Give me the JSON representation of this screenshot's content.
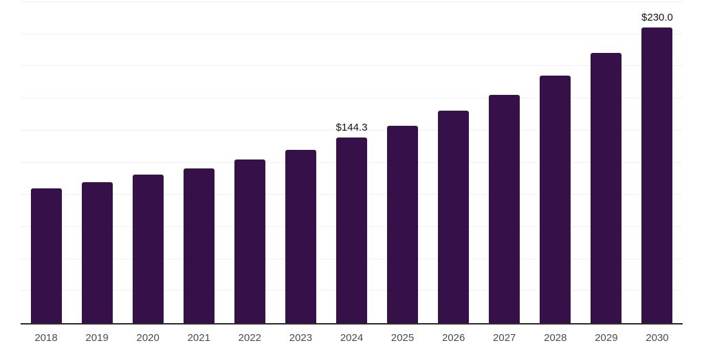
{
  "chart_data": {
    "type": "bar",
    "title": "",
    "xlabel": "",
    "ylabel": "",
    "categories": [
      "2018",
      "2019",
      "2020",
      "2021",
      "2022",
      "2023",
      "2024",
      "2025",
      "2026",
      "2027",
      "2028",
      "2029",
      "2030"
    ],
    "values": [
      104.8,
      110.0,
      115.8,
      120.6,
      127.4,
      134.9,
      144.3,
      153.9,
      165.5,
      178.0,
      192.7,
      210.2,
      230.0
    ],
    "point_labels": [
      "",
      "",
      "",
      "",
      "",
      "",
      "$144.3",
      "",
      "",
      "",
      "",
      "",
      "$230.0"
    ],
    "ylim": [
      0,
      250
    ],
    "grid_step": 25,
    "grid": "horizontal-only",
    "legend_position": "none",
    "y_tick_labels_visible": false,
    "colors": {
      "bar": "#351049",
      "gridline": "#f0f0f0",
      "axis_line": "#2b2b2b",
      "tick_label": "#4a4a4a",
      "data_label": "#111111",
      "background": "#ffffff"
    }
  }
}
